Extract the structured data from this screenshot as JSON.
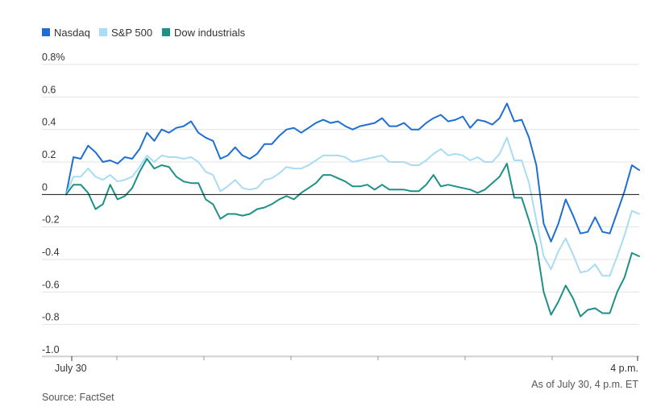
{
  "chart_data": {
    "type": "line",
    "x_axis": {
      "start_label": "July 30",
      "end_label": "4 p.m.",
      "units": "intraday, 9:30 a.m. to 4 p.m.",
      "minor_tick_count": 6
    },
    "y_axis": {
      "ylim": [
        -1.0,
        0.8
      ],
      "ticks": [
        0.8,
        0.6,
        0.4,
        0.2,
        0,
        -0.2,
        -0.4,
        -0.6,
        -0.8,
        -1.0
      ],
      "tick_labels": [
        "0.8%",
        "0.6",
        "0.4",
        "0.2",
        "0",
        "-0.2",
        "-0.4",
        "-0.6",
        "-0.8",
        "-1.0"
      ],
      "grid": true
    },
    "legend": {
      "placement": "top-left",
      "items": [
        {
          "label": "Nasdaq",
          "color": "#1f6fd1"
        },
        {
          "label": "S&P 500",
          "color": "#a8dcf5"
        },
        {
          "label": "Dow industrials",
          "color": "#1e9088"
        }
      ]
    },
    "series": [
      {
        "name": "Nasdaq",
        "color": "#1f6fd1",
        "values": [
          0.0,
          0.23,
          0.22,
          0.3,
          0.26,
          0.2,
          0.21,
          0.19,
          0.23,
          0.22,
          0.28,
          0.38,
          0.33,
          0.4,
          0.38,
          0.41,
          0.42,
          0.45,
          0.38,
          0.35,
          0.33,
          0.22,
          0.24,
          0.29,
          0.24,
          0.22,
          0.25,
          0.31,
          0.31,
          0.36,
          0.4,
          0.41,
          0.38,
          0.41,
          0.44,
          0.46,
          0.44,
          0.45,
          0.42,
          0.4,
          0.42,
          0.43,
          0.44,
          0.47,
          0.42,
          0.42,
          0.44,
          0.4,
          0.4,
          0.44,
          0.47,
          0.49,
          0.45,
          0.46,
          0.48,
          0.41,
          0.46,
          0.45,
          0.43,
          0.47,
          0.56,
          0.45,
          0.46,
          0.35,
          0.18,
          -0.18,
          -0.29,
          -0.18,
          -0.03,
          -0.13,
          -0.24,
          -0.23,
          -0.14,
          -0.23,
          -0.24,
          -0.11,
          0.02,
          0.18,
          0.15
        ]
      },
      {
        "name": "S&P 500",
        "color": "#a8dcf5",
        "values": [
          0.0,
          0.11,
          0.11,
          0.16,
          0.11,
          0.09,
          0.12,
          0.08,
          0.09,
          0.11,
          0.17,
          0.24,
          0.2,
          0.24,
          0.23,
          0.23,
          0.22,
          0.23,
          0.2,
          0.14,
          0.12,
          0.02,
          0.05,
          0.09,
          0.04,
          0.03,
          0.04,
          0.09,
          0.1,
          0.13,
          0.17,
          0.16,
          0.16,
          0.18,
          0.21,
          0.24,
          0.24,
          0.24,
          0.23,
          0.2,
          0.21,
          0.22,
          0.23,
          0.24,
          0.2,
          0.2,
          0.2,
          0.18,
          0.18,
          0.21,
          0.25,
          0.28,
          0.24,
          0.25,
          0.24,
          0.21,
          0.23,
          0.2,
          0.2,
          0.25,
          0.35,
          0.21,
          0.21,
          0.07,
          -0.16,
          -0.38,
          -0.46,
          -0.35,
          -0.27,
          -0.37,
          -0.48,
          -0.47,
          -0.43,
          -0.5,
          -0.5,
          -0.38,
          -0.25,
          -0.1,
          -0.12
        ]
      },
      {
        "name": "Dow industrials",
        "color": "#1e9088",
        "values": [
          0.0,
          0.06,
          0.06,
          0.01,
          -0.09,
          -0.06,
          0.06,
          -0.03,
          -0.01,
          0.04,
          0.14,
          0.22,
          0.16,
          0.18,
          0.17,
          0.11,
          0.08,
          0.07,
          0.07,
          -0.03,
          -0.06,
          -0.15,
          -0.12,
          -0.12,
          -0.13,
          -0.12,
          -0.09,
          -0.08,
          -0.06,
          -0.03,
          -0.01,
          -0.03,
          0.01,
          0.04,
          0.07,
          0.12,
          0.12,
          0.1,
          0.08,
          0.05,
          0.05,
          0.06,
          0.03,
          0.06,
          0.03,
          0.03,
          0.03,
          0.02,
          0.02,
          0.06,
          0.12,
          0.05,
          0.06,
          0.05,
          0.04,
          0.03,
          0.01,
          0.03,
          0.07,
          0.11,
          0.19,
          -0.02,
          -0.02,
          -0.16,
          -0.31,
          -0.6,
          -0.74,
          -0.66,
          -0.56,
          -0.64,
          -0.75,
          -0.71,
          -0.7,
          -0.73,
          -0.73,
          -0.6,
          -0.51,
          -0.36,
          -0.38
        ]
      }
    ],
    "footer": {
      "as_of": "As of July 30, 4 p.m. ET",
      "source": "Source: FactSet"
    }
  }
}
